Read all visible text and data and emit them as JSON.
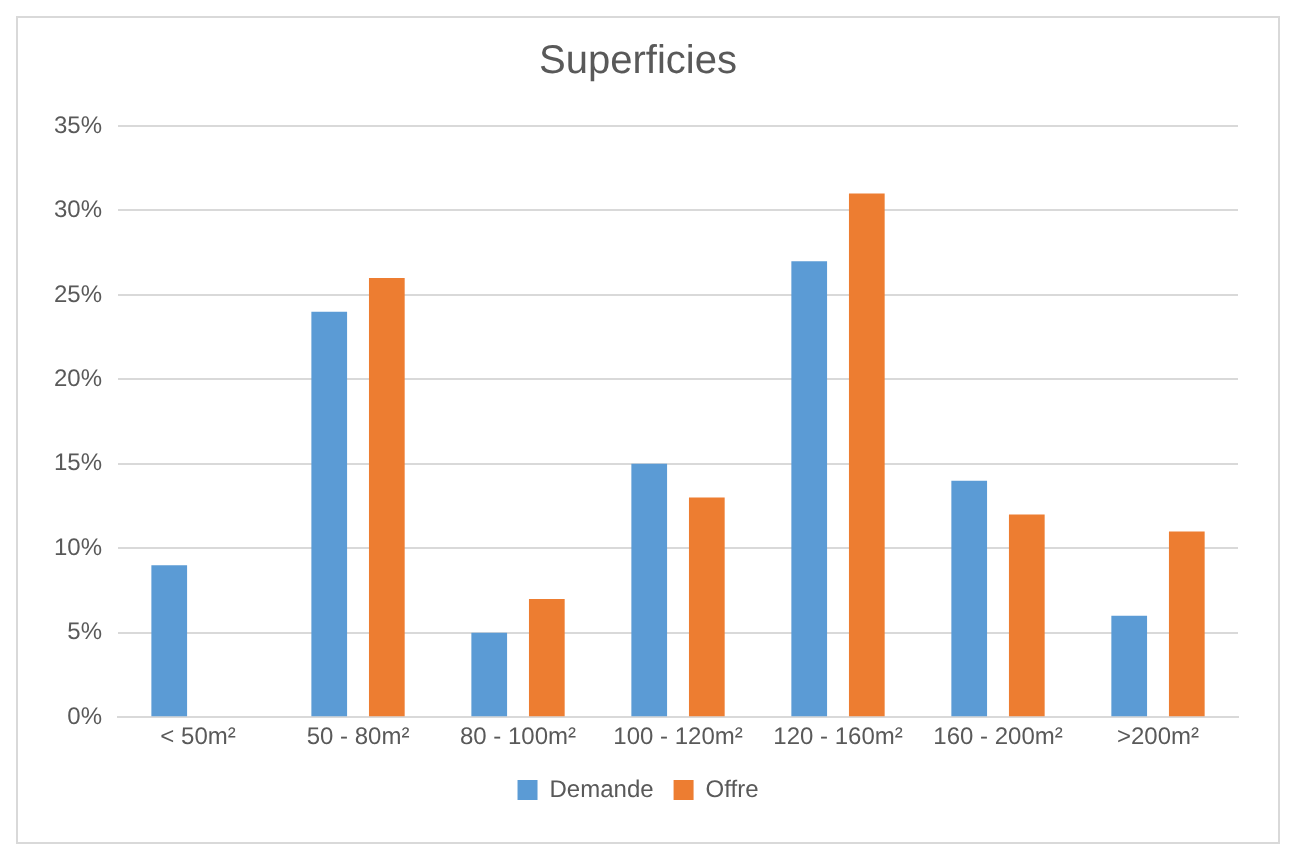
{
  "chart_data": {
    "type": "bar",
    "title": "Superficies",
    "categories": [
      "< 50m²",
      "50 - 80m²",
      "80 - 100m²",
      "100 - 120m²",
      "120 - 160m²",
      "160 - 200m²",
      ">200m²"
    ],
    "series": [
      {
        "name": "Demande",
        "color": "#5b9bd5",
        "values": [
          9,
          24,
          5,
          15,
          27,
          14,
          6
        ]
      },
      {
        "name": "Offre",
        "color": "#ed7d31",
        "values": [
          0,
          26,
          7,
          13,
          31,
          12,
          11
        ]
      }
    ],
    "ylim": [
      0,
      35
    ],
    "yticks": [
      {
        "value": 0,
        "label": "0%"
      },
      {
        "value": 5,
        "label": "5%"
      },
      {
        "value": 10,
        "label": "10%"
      },
      {
        "value": 15,
        "label": "15%"
      },
      {
        "value": 20,
        "label": "20%"
      },
      {
        "value": 25,
        "label": "25%"
      },
      {
        "value": 30,
        "label": "30%"
      },
      {
        "value": 35,
        "label": "35%"
      }
    ],
    "grid": "y",
    "legend": "bottom"
  }
}
